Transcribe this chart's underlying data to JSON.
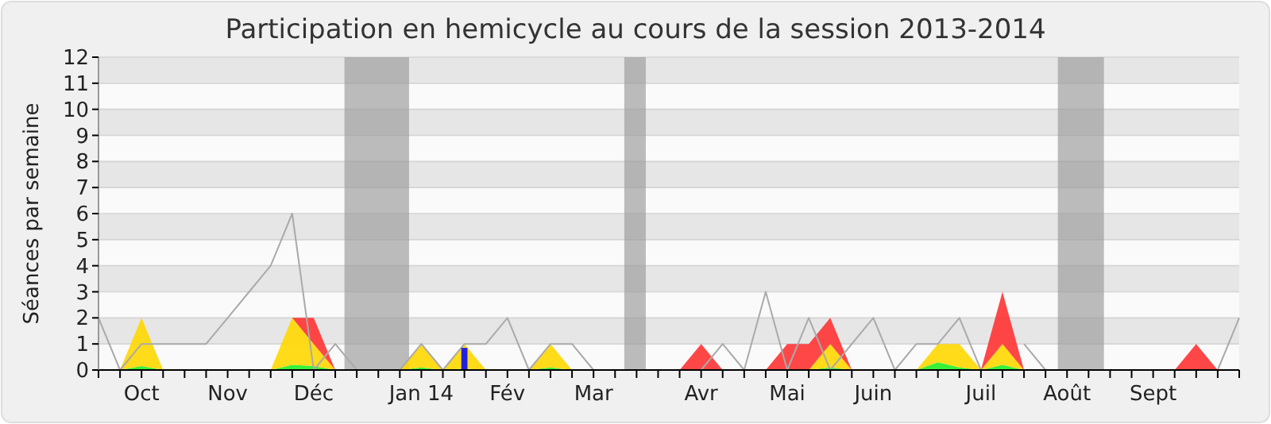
{
  "chart_data": {
    "type": "area",
    "stacked": true,
    "title": "Participation en hemicycle au cours de la session 2013-2014",
    "ylabel": "Séances par semaine",
    "x": [
      "2013-09-23",
      "2013-09-30",
      "2013-10-07",
      "2013-10-14",
      "2013-10-21",
      "2013-10-28",
      "2013-11-04",
      "2013-11-11",
      "2013-11-18",
      "2013-11-25",
      "2013-12-02",
      "2013-12-09",
      "2013-12-16",
      "2013-12-23",
      "2013-12-30",
      "2014-01-06",
      "2014-01-13",
      "2014-01-20",
      "2014-01-27",
      "2014-02-03",
      "2014-02-10",
      "2014-02-17",
      "2014-02-24",
      "2014-03-03",
      "2014-03-10",
      "2014-03-17",
      "2014-03-24",
      "2014-03-31",
      "2014-04-07",
      "2014-04-14",
      "2014-04-21",
      "2014-04-28",
      "2014-05-05",
      "2014-05-12",
      "2014-05-19",
      "2014-05-26",
      "2014-06-02",
      "2014-06-09",
      "2014-06-16",
      "2014-06-23",
      "2014-06-30",
      "2014-07-07",
      "2014-07-14",
      "2014-07-21",
      "2014-07-28",
      "2014-08-04",
      "2014-08-11",
      "2014-08-18",
      "2014-08-25",
      "2014-09-01",
      "2014-09-08",
      "2014-09-15",
      "2014-09-22",
      "2014-09-29"
    ],
    "series": [
      {
        "color": "#22ee22",
        "values": [
          0,
          0,
          0.15,
          0,
          0,
          0,
          0,
          0,
          0,
          0.2,
          0.15,
          0,
          0,
          0,
          0,
          0.1,
          0,
          0.05,
          0,
          0,
          0,
          0.1,
          0,
          0,
          0,
          0,
          0,
          0,
          0,
          0,
          0,
          0,
          0,
          0,
          0.1,
          0,
          0,
          0,
          0,
          0.3,
          0.1,
          0,
          0.2,
          0,
          0,
          0,
          0,
          0,
          0,
          0,
          0,
          0,
          0,
          0
        ]
      },
      {
        "color": "#ffd700",
        "values": [
          0,
          0,
          1.85,
          0,
          0,
          0,
          0,
          0,
          0,
          1.8,
          0.85,
          0,
          0,
          0,
          0,
          0.9,
          0,
          0.95,
          0,
          0,
          0,
          0.9,
          0,
          0,
          0,
          0,
          0,
          0,
          0,
          0,
          0,
          0,
          0,
          0,
          0.9,
          0,
          0,
          0,
          0,
          0.7,
          0.9,
          0,
          0.8,
          0,
          0,
          0,
          0,
          0,
          0,
          0,
          0,
          0,
          0,
          0
        ]
      },
      {
        "color": "#ff3333",
        "values": [
          0,
          0,
          0,
          0,
          0,
          0,
          0,
          0,
          0,
          0,
          1,
          0,
          0,
          0,
          0,
          0,
          0,
          0,
          0,
          0,
          0,
          0,
          0,
          0,
          0,
          0,
          0,
          0,
          1,
          0,
          0,
          0,
          1,
          1,
          1,
          0,
          0,
          0,
          0,
          0,
          0,
          0,
          2,
          0,
          0,
          0,
          0,
          0,
          0,
          0,
          0,
          1,
          0,
          0
        ]
      },
      {
        "type": "line",
        "color": "#aaaaaa",
        "values": [
          2,
          0,
          1,
          1,
          1,
          1,
          2,
          3,
          4,
          6,
          0,
          1,
          0,
          0,
          0,
          1,
          0,
          1,
          1,
          2,
          0,
          1,
          1,
          0,
          0,
          0,
          0,
          0,
          0,
          1,
          0,
          3,
          0,
          2,
          0,
          1,
          2,
          0,
          1,
          1,
          2,
          0,
          null,
          1,
          0,
          0,
          0,
          0,
          0,
          0,
          0,
          0,
          0,
          2
        ]
      },
      {
        "type": "bar",
        "color": "#2222dd",
        "x": [
          "2014-01-20"
        ],
        "values": [
          0.85
        ]
      }
    ],
    "xlim": [
      "2013-09-23",
      "2014-09-29"
    ],
    "xticks": [
      {
        "value": "2013-09-23",
        "label": null
      },
      {
        "value": "2013-09-30",
        "label": null
      },
      {
        "value": "2013-10-07",
        "label": "Oct"
      },
      {
        "value": "2013-10-14",
        "label": null
      },
      {
        "value": "2013-10-21",
        "label": null
      },
      {
        "value": "2013-10-28",
        "label": null
      },
      {
        "value": "2013-11-04",
        "label": "Nov"
      },
      {
        "value": "2013-11-11",
        "label": null
      },
      {
        "value": "2013-11-18",
        "label": null
      },
      {
        "value": "2013-11-25",
        "label": null
      },
      {
        "value": "2013-12-02",
        "label": "Déc"
      },
      {
        "value": "2013-12-09",
        "label": null
      },
      {
        "value": "2013-12-16",
        "label": null
      },
      {
        "value": "2013-12-23",
        "label": null
      },
      {
        "value": "2013-12-30",
        "label": null
      },
      {
        "value": "2014-01-06",
        "label": "Jan 14"
      },
      {
        "value": "2014-01-13",
        "label": null
      },
      {
        "value": "2014-01-20",
        "label": null
      },
      {
        "value": "2014-01-27",
        "label": null
      },
      {
        "value": "2014-02-03",
        "label": "Fév"
      },
      {
        "value": "2014-02-10",
        "label": null
      },
      {
        "value": "2014-02-17",
        "label": null
      },
      {
        "value": "2014-02-24",
        "label": null
      },
      {
        "value": "2014-03-03",
        "label": "Mar"
      },
      {
        "value": "2014-03-10",
        "label": null
      },
      {
        "value": "2014-03-17",
        "label": null
      },
      {
        "value": "2014-03-24",
        "label": null
      },
      {
        "value": "2014-03-31",
        "label": null
      },
      {
        "value": "2014-04-07",
        "label": "Avr"
      },
      {
        "value": "2014-04-14",
        "label": null
      },
      {
        "value": "2014-04-21",
        "label": null
      },
      {
        "value": "2014-04-28",
        "label": null
      },
      {
        "value": "2014-05-05",
        "label": "Mai"
      },
      {
        "value": "2014-05-12",
        "label": null
      },
      {
        "value": "2014-05-19",
        "label": null
      },
      {
        "value": "2014-05-26",
        "label": null
      },
      {
        "value": "2014-06-02",
        "label": "Juin"
      },
      {
        "value": "2014-06-09",
        "label": null
      },
      {
        "value": "2014-06-16",
        "label": null
      },
      {
        "value": "2014-06-23",
        "label": null
      },
      {
        "value": "2014-06-30",
        "label": null
      },
      {
        "value": "2014-07-07",
        "label": "Juil"
      },
      {
        "value": "2014-07-14",
        "label": null
      },
      {
        "value": "2014-07-21",
        "label": null
      },
      {
        "value": "2014-07-28",
        "label": null
      },
      {
        "value": "2014-08-04",
        "label": "Août"
      },
      {
        "value": "2014-08-11",
        "label": null
      },
      {
        "value": "2014-08-18",
        "label": null
      },
      {
        "value": "2014-08-25",
        "label": null
      },
      {
        "value": "2014-09-01",
        "label": "Sept"
      },
      {
        "value": "2014-09-08",
        "label": null
      },
      {
        "value": "2014-09-15",
        "label": null
      },
      {
        "value": "2014-09-22",
        "label": null
      },
      {
        "value": "2014-09-29",
        "label": null
      }
    ],
    "ylim": [
      0,
      12
    ],
    "yticks": [
      0,
      1,
      2,
      3,
      4,
      5,
      6,
      7,
      8,
      9,
      10,
      11,
      12
    ],
    "grid": "y",
    "bands": [
      {
        "axis": "x",
        "from": "2013-12-12",
        "to": "2014-01-02",
        "color": "#999999"
      },
      {
        "axis": "x",
        "from": "2014-03-13",
        "to": "2014-03-20",
        "color": "#999999"
      },
      {
        "axis": "x",
        "from": "2014-08-01",
        "to": "2014-08-16",
        "color": "#999999"
      }
    ]
  }
}
